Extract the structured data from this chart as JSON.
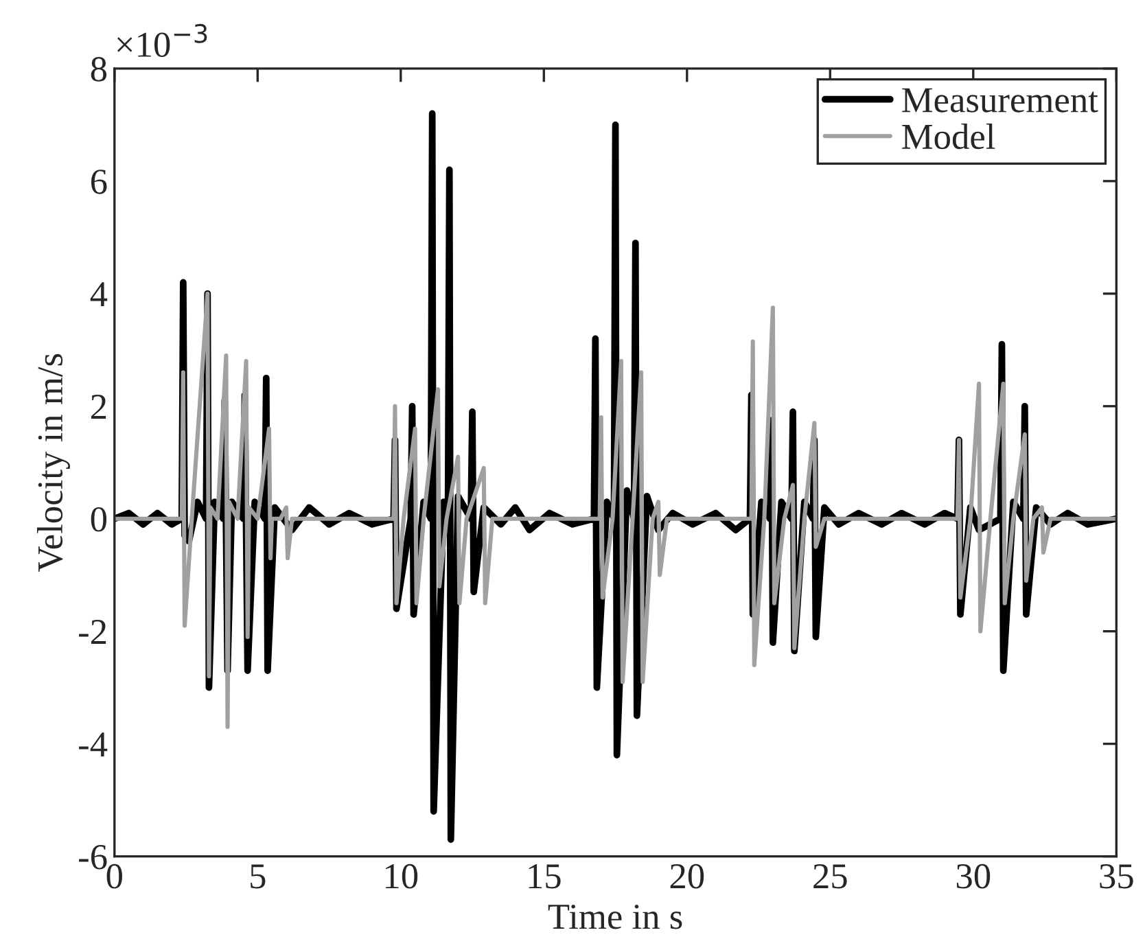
{
  "chart_data": {
    "type": "line",
    "xlabel": "Time in s",
    "ylabel": "Velocity in m/s",
    "annotations": [
      "×10$^{−3}$"
    ],
    "xlim": [
      0,
      35
    ],
    "xticks": [
      0,
      5,
      10,
      15,
      20,
      25,
      30,
      35
    ],
    "ylim": [
      -6,
      8
    ],
    "yticks": [
      -6,
      -4,
      -2,
      0,
      2,
      4,
      6,
      8
    ],
    "grid": false,
    "legend": "top right",
    "line_style": "solid",
    "marker": "none",
    "series": [
      {
        "name": "Measurement",
        "color": "#000000",
        "x": [
          0,
          0.5,
          1.0,
          1.5,
          2.0,
          2.35,
          2.4,
          2.45,
          2.6,
          2.9,
          3.2,
          3.25,
          3.3,
          3.5,
          3.8,
          3.85,
          3.95,
          4.1,
          4.5,
          4.55,
          4.65,
          4.9,
          5.25,
          5.3,
          5.35,
          5.6,
          6.2,
          6.8,
          7.5,
          8.2,
          9.0,
          9.75,
          9.8,
          9.85,
          10.35,
          10.4,
          10.45,
          10.8,
          11.05,
          11.1,
          11.15,
          11.5,
          11.65,
          11.7,
          11.75,
          12.0,
          12.45,
          12.5,
          12.55,
          12.9,
          13.5,
          14.0,
          14.5,
          15.2,
          16.0,
          16.75,
          16.8,
          16.85,
          17.2,
          17.45,
          17.5,
          17.55,
          17.9,
          18.15,
          18.2,
          18.25,
          18.6,
          19.0,
          19.5,
          20.2,
          21.0,
          21.7,
          22.2,
          22.25,
          22.3,
          22.6,
          22.9,
          22.95,
          23.0,
          23.3,
          23.65,
          23.7,
          23.75,
          24.1,
          24.4,
          24.45,
          24.5,
          24.8,
          25.3,
          26.0,
          26.8,
          27.5,
          28.3,
          29.0,
          29.45,
          29.5,
          29.55,
          29.9,
          30.2,
          30.95,
          31.0,
          31.05,
          31.4,
          31.75,
          31.8,
          31.85,
          32.2,
          32.7,
          33.3,
          34.0,
          35.0
        ],
        "values": [
          0,
          0.1,
          -0.1,
          0.1,
          -0.1,
          0,
          4.2,
          -0.3,
          -0.4,
          0.3,
          0,
          4.0,
          -3.0,
          0.3,
          0,
          2.1,
          -2.7,
          0.3,
          0,
          2.2,
          -2.7,
          0.3,
          0,
          2.5,
          -2.7,
          0.2,
          -0.2,
          0.2,
          -0.1,
          0.1,
          -0.1,
          0,
          1.4,
          -1.6,
          0,
          2.0,
          -1.7,
          0.3,
          0,
          7.2,
          -5.2,
          0.3,
          0,
          6.2,
          -5.7,
          0.4,
          0,
          1.9,
          -1.3,
          0.2,
          -0.1,
          0.2,
          -0.2,
          0.1,
          -0.1,
          0,
          3.2,
          -3.0,
          0.3,
          0,
          7.0,
          -4.2,
          0.5,
          0,
          4.9,
          -3.5,
          0.4,
          -0.2,
          0.1,
          -0.1,
          0.1,
          -0.2,
          0,
          2.2,
          -1.7,
          0.3,
          0,
          1.75,
          -2.2,
          0.3,
          0,
          1.9,
          -2.35,
          0.3,
          0,
          1.4,
          -2.1,
          0.2,
          -0.1,
          0.1,
          -0.1,
          0.1,
          -0.1,
          0.1,
          0,
          1.4,
          -1.7,
          0.2,
          -0.2,
          0,
          3.1,
          -2.7,
          0.3,
          0,
          2.0,
          -1.7,
          0.2,
          -0.1,
          0.1,
          -0.1,
          0
        ]
      },
      {
        "name": "Model",
        "color": "#a0a0a0",
        "x": [
          0,
          2.35,
          2.4,
          2.45,
          2.7,
          3.25,
          3.3,
          3.35,
          3.6,
          3.9,
          3.95,
          4.0,
          4.3,
          4.6,
          4.65,
          4.7,
          5.0,
          5.4,
          5.45,
          5.5,
          5.8,
          6.0,
          6.05,
          6.2,
          9.75,
          9.8,
          9.85,
          10.1,
          10.5,
          10.55,
          10.8,
          11.3,
          11.35,
          11.6,
          12.0,
          12.05,
          12.3,
          12.9,
          12.95,
          13.2,
          16.95,
          17.0,
          17.05,
          17.4,
          17.7,
          17.75,
          18.1,
          18.4,
          18.45,
          18.8,
          19.0,
          19.05,
          19.3,
          22.25,
          22.3,
          22.35,
          22.7,
          23.0,
          23.05,
          23.4,
          23.7,
          23.75,
          24.1,
          24.45,
          24.5,
          24.8,
          29.45,
          29.5,
          29.55,
          29.9,
          30.2,
          30.25,
          30.6,
          31.05,
          31.1,
          31.4,
          31.8,
          31.85,
          32.1,
          32.4,
          32.45,
          32.7,
          35.0
        ],
        "values": [
          0,
          0,
          2.6,
          -1.9,
          0,
          4.0,
          -2.8,
          0.2,
          0,
          2.9,
          -3.7,
          0.3,
          0,
          2.8,
          -2.1,
          0.2,
          0,
          1.6,
          -0.7,
          0,
          0,
          0.2,
          -0.7,
          0,
          0,
          2.0,
          -1.5,
          0,
          1.6,
          -1.5,
          0,
          2.3,
          -1.2,
          0,
          1.1,
          -1.5,
          0,
          0.9,
          -1.5,
          0,
          0,
          1.8,
          -1.4,
          0,
          2.8,
          -2.9,
          0,
          2.6,
          -2.9,
          0,
          0.3,
          -1.0,
          0,
          0,
          3.15,
          -2.6,
          0,
          3.75,
          -1.5,
          0,
          0.6,
          -2.3,
          0,
          1.7,
          -0.5,
          0,
          0,
          1.4,
          -1.4,
          0,
          2.4,
          -2.0,
          0,
          2.4,
          -1.5,
          0,
          1.5,
          -1.1,
          0,
          0.2,
          -0.6,
          0,
          0
        ]
      }
    ]
  }
}
